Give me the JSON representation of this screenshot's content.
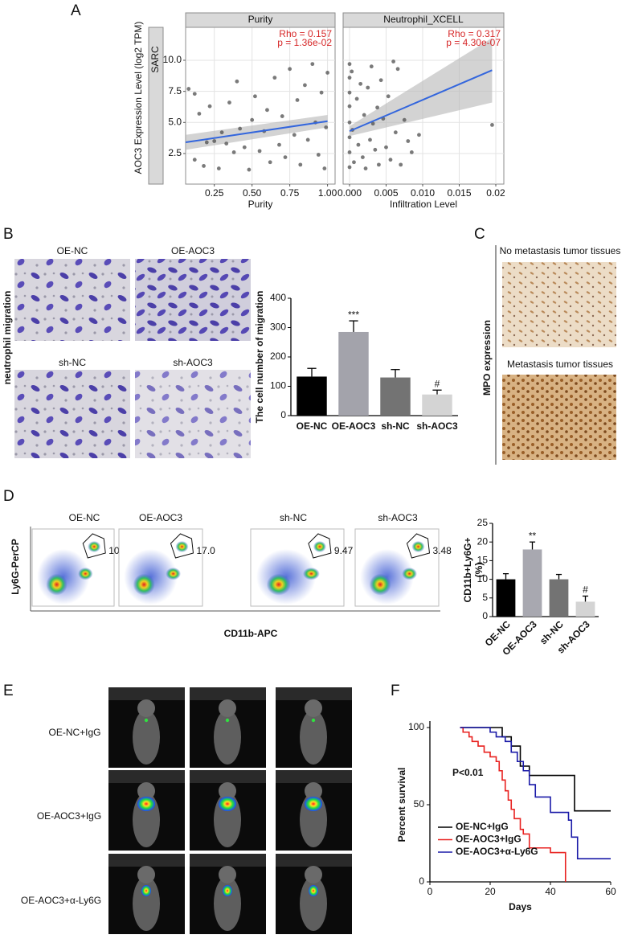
{
  "figure": {
    "panel_labels": [
      "A",
      "B",
      "C",
      "D",
      "E",
      "F"
    ],
    "B": {
      "image_labels": [
        "OE-NC",
        "OE-AOC3",
        "sh-NC",
        "sh-AOC3"
      ],
      "side_label": "neutrophil migration"
    },
    "C": {
      "image_labels": [
        "No metastasis tumor tissues",
        "Metastasis tumor tissues"
      ],
      "side_label": "MPO expression"
    },
    "D": {
      "plot_labels": [
        "OE-NC",
        "OE-AOC3",
        "sh-NC",
        "sh-AOC3"
      ],
      "gate_values": [
        "10.0",
        "17.0",
        "9.47",
        "3.48"
      ],
      "y_label": "Ly6G-PerCP",
      "x_label": "CD11b-APC"
    },
    "E": {
      "row_labels": [
        "OE-NC+IgG",
        "OE-AOC3+IgG",
        "OE-AOC3+α-Ly6G"
      ]
    }
  },
  "chart_data": [
    {
      "type": "scatter",
      "facet": "Purity",
      "strip": "SARC",
      "y_label": "AOC3 Expression Level (log2 TPM)",
      "x_label": "Purity",
      "annotations": [
        "Rho = 0.157",
        "p = 1.36e-02"
      ],
      "annotation_color": "#d62728",
      "color": "#4d4d4d",
      "x": [
        0.08,
        0.12,
        0.12,
        0.15,
        0.18,
        0.2,
        0.22,
        0.25,
        0.28,
        0.3,
        0.33,
        0.35,
        0.38,
        0.4,
        0.42,
        0.45,
        0.48,
        0.5,
        0.52,
        0.55,
        0.58,
        0.6,
        0.62,
        0.65,
        0.68,
        0.7,
        0.72,
        0.75,
        0.78,
        0.8,
        0.82,
        0.85,
        0.87,
        0.9,
        0.92,
        0.94,
        0.96,
        0.98,
        1.0,
        0.99
      ],
      "values": [
        7.7,
        7.3,
        2.0,
        5.7,
        1.5,
        3.4,
        6.3,
        3.5,
        1.3,
        4.2,
        3.3,
        6.6,
        2.6,
        8.3,
        4.5,
        3.0,
        1.2,
        5.2,
        7.1,
        2.7,
        4.3,
        6.0,
        1.8,
        8.6,
        3.2,
        5.5,
        2.2,
        9.3,
        4.0,
        6.8,
        1.6,
        8.0,
        3.6,
        9.7,
        5.0,
        2.4,
        7.4,
        1.3,
        9.0,
        4.6
      ],
      "fit": {
        "color": "#3366dd",
        "x": [
          0.06,
          1.0
        ],
        "values": [
          3.4,
          5.1
        ],
        "lower": [
          2.8,
          4.6
        ],
        "upper": [
          4.0,
          5.6
        ]
      },
      "xlim": [
        0.06,
        1.05
      ],
      "ylim": [
        0.04,
        12.65
      ],
      "xticks": [
        0.25,
        {
          "value": 0.5,
          "label": "0.50"
        },
        0.75,
        {
          "value": 1.0,
          "label": "1.00"
        }
      ],
      "yticks": [
        2.5,
        {
          "value": 5,
          "label": "5.0"
        },
        7.5,
        {
          "value": 10,
          "label": "10.0"
        }
      ],
      "grid": true
    },
    {
      "type": "scatter",
      "facet": "Neutrophil_XCELL",
      "x_label": "Infiltration Level",
      "annotations": [
        "Rho = 0.317",
        "p = 4.30e-07"
      ],
      "annotation_color": "#d62728",
      "color": "#4d4d4d",
      "x": [
        0,
        0,
        0,
        0,
        0,
        0,
        0,
        0,
        0.0003,
        0.0004,
        0.0006,
        0.001,
        0.0012,
        0.0015,
        0.0018,
        0.002,
        0.0022,
        0.0025,
        0.0028,
        0.003,
        0.0032,
        0.0035,
        0.0038,
        0.004,
        0.0043,
        0.0046,
        0.005,
        0.0053,
        0.0056,
        0.006,
        0.0063,
        0.0066,
        0.007,
        0.0075,
        0.008,
        0.0085,
        0.0095,
        0.0195
      ],
      "values": [
        9.7,
        8.6,
        7.4,
        6.3,
        5.0,
        3.8,
        2.6,
        1.4,
        9.1,
        4.4,
        1.8,
        6.9,
        3.2,
        8.1,
        2.2,
        5.6,
        1.3,
        7.8,
        3.6,
        9.5,
        4.9,
        2.8,
        6.2,
        1.6,
        8.4,
        5.3,
        3.0,
        7.1,
        2.0,
        9.9,
        4.2,
        9.3,
        1.6,
        5.2,
        3.5,
        2.6,
        4.0,
        4.8
      ],
      "fit": {
        "color": "#3366dd",
        "x": [
          0,
          0.0195
        ],
        "values": [
          4.3,
          9.2
        ],
        "lower": [
          3.9,
          6.6
        ],
        "upper": [
          4.7,
          11.8
        ]
      },
      "xlim": [
        -0.00088,
        0.0211
      ],
      "ylim": [
        0.04,
        12.65
      ],
      "xticks": [
        {
          "value": 0,
          "label": "0.000"
        },
        0.005,
        {
          "value": 0.01,
          "label": "0.010"
        },
        0.015,
        0.02
      ],
      "yticks": [
        2.5,
        5,
        7.5,
        10
      ],
      "y_tick_labels": false,
      "grid": true
    },
    {
      "type": "bar",
      "y_label": "The cell number of migration",
      "categories": [
        "OE-NC",
        "OE-AOC3",
        "sh-NC",
        "sh-AOC3"
      ],
      "values": [
        133,
        285,
        130,
        72
      ],
      "errors": [
        28,
        38,
        27,
        15
      ],
      "colors": [
        "#000000",
        "#a3a3ab",
        "#737373",
        "#d4d4d4"
      ],
      "annotations": [
        {
          "index": 1,
          "text": "***"
        },
        {
          "index": 3,
          "text": "#"
        }
      ],
      "ylim": [
        0,
        400
      ],
      "yticks": [
        0,
        100,
        200,
        300,
        400
      ]
    },
    {
      "type": "bar",
      "y_label": [
        "CD11b+Ly6G+",
        "(%)"
      ],
      "categories": [
        "OE-NC",
        "OE-AOC3",
        "sh-NC",
        "sh-AOC3"
      ],
      "values": [
        10,
        18,
        10,
        4
      ],
      "errors": [
        1.5,
        2,
        1.3,
        1.5
      ],
      "colors": [
        "#000000",
        "#a8a8b0",
        "#737373",
        "#d4d4d4"
      ],
      "annotations": [
        {
          "index": 1,
          "text": "**"
        },
        {
          "index": 3,
          "text": "#"
        }
      ],
      "ylim": [
        0,
        25
      ],
      "yticks": [
        0,
        5,
        10,
        15,
        20,
        25
      ]
    },
    {
      "type": "line",
      "step": true,
      "x_label": "Days",
      "y_label": "Percent survival",
      "annotations": [
        "P<0.01"
      ],
      "series": [
        {
          "name": "OE-NC+IgG",
          "color": "#000000",
          "x": [
            10,
            24,
            27,
            30,
            33,
            48,
            60
          ],
          "values": [
            100,
            94,
            88,
            75,
            69,
            46,
            46
          ]
        },
        {
          "name": "OE-AOC3+IgG",
          "color": "#e8211f",
          "x": [
            10,
            11,
            13,
            14,
            16,
            18,
            20,
            22,
            23,
            24,
            25,
            26,
            27,
            28,
            30,
            31,
            33,
            40,
            45
          ],
          "values": [
            100,
            97,
            94,
            91,
            88,
            84,
            81,
            78,
            72,
            66,
            59,
            53,
            47,
            41,
            34,
            31,
            22,
            19,
            0
          ]
        },
        {
          "name": "OE-AOC3+α-Ly6G",
          "color": "#1a1aa8",
          "x": [
            10,
            20,
            22,
            25,
            27,
            29,
            31,
            33,
            35,
            40,
            46,
            47,
            49,
            60
          ],
          "values": [
            100,
            97,
            94,
            91,
            84,
            78,
            72,
            63,
            55,
            45,
            40,
            29,
            15,
            15
          ]
        }
      ],
      "xlim": [
        0,
        60
      ],
      "ylim": [
        0,
        100
      ],
      "xticks": [
        0,
        20,
        40,
        60
      ],
      "yticks": [
        0,
        50,
        100
      ]
    }
  ]
}
